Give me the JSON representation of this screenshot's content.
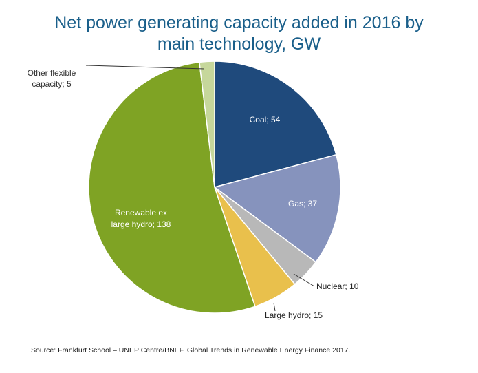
{
  "chart_data": {
    "type": "pie",
    "title_lines": [
      "Net power generating capacity added in 2016 by",
      "main technology, GW"
    ],
    "slices": [
      {
        "label": "Coal; 54",
        "name": "Coal",
        "value": 54,
        "color": "#1f4a7c"
      },
      {
        "label": "Gas; 37",
        "name": "Gas",
        "value": 37,
        "color": "#8693bd"
      },
      {
        "label": "Nuclear; 10",
        "name": "Nuclear",
        "value": 10,
        "color": "#b8b8b8"
      },
      {
        "label": "Large hydro; 15",
        "name": "Large hydro",
        "value": 15,
        "color": "#e9c04c"
      },
      {
        "label_lines": [
          "Renewable ex",
          "large hydro; 138"
        ],
        "name": "Renewable ex large hydro",
        "value": 138,
        "color": "#7fa324"
      },
      {
        "label_lines": [
          "Other flexible",
          "capacity; 5"
        ],
        "name": "Other flexible capacity",
        "value": 5,
        "color": "#c6d79b"
      }
    ],
    "start": "top",
    "direction": "clockwise"
  },
  "source": "Source: Frankfurt School – UNEP Centre/BNEF, Global Trends in Renewable Energy Finance 2017."
}
